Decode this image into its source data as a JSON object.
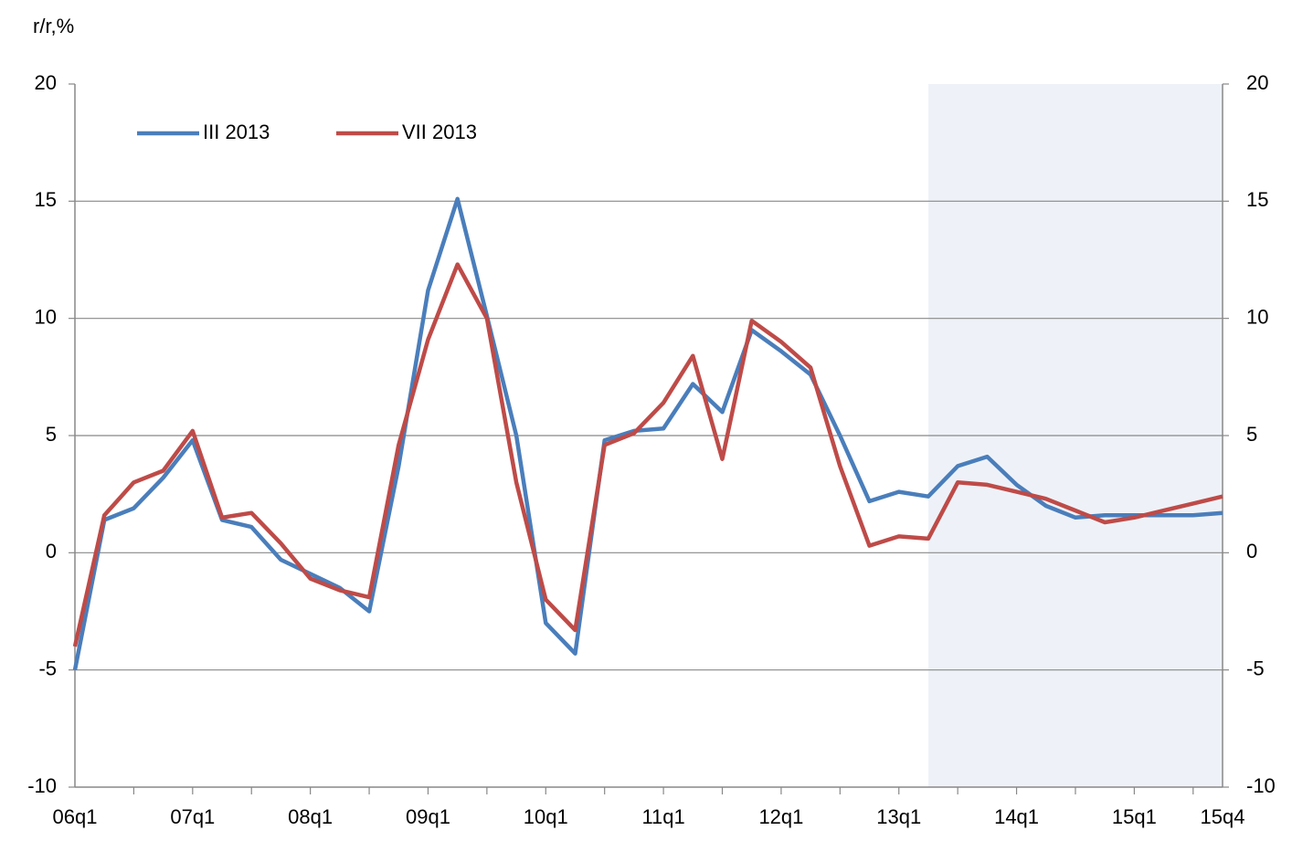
{
  "chart_data": {
    "type": "line",
    "y_axis_label": "r/r,%",
    "categories": [
      "06q1",
      null,
      null,
      null,
      "07q1",
      null,
      null,
      null,
      "08q1",
      null,
      null,
      null,
      "09q1",
      null,
      null,
      null,
      "10q1",
      null,
      null,
      null,
      "11q1",
      null,
      null,
      null,
      "12q1",
      null,
      null,
      null,
      "13q1",
      null,
      null,
      null,
      "14q1",
      null,
      null,
      null,
      "15q1",
      null,
      null,
      "15q4"
    ],
    "series": [
      {
        "name": "III 2013",
        "color": "#4a7ebb",
        "values": [
          -5.0,
          1.4,
          1.9,
          3.2,
          4.8,
          1.4,
          1.1,
          -0.3,
          -0.9,
          -1.5,
          -2.5,
          3.7,
          11.2,
          15.1,
          10.1,
          5.0,
          -3.0,
          -4.3,
          4.8,
          5.2,
          5.3,
          7.2,
          6.0,
          9.5,
          8.6,
          7.6,
          5.0,
          2.2,
          2.6,
          2.4,
          3.7,
          4.1,
          2.9,
          2.0,
          1.5,
          1.6,
          1.6,
          1.6,
          1.6,
          1.7
        ]
      },
      {
        "name": "VII 2013",
        "color": "#be4b48",
        "values": [
          -4.0,
          1.6,
          3.0,
          3.5,
          5.2,
          1.5,
          1.7,
          0.4,
          -1.1,
          -1.6,
          -1.9,
          4.6,
          9.1,
          12.3,
          10.0,
          3.0,
          -2.0,
          -3.3,
          4.6,
          5.1,
          6.4,
          8.4,
          4.0,
          9.9,
          9.0,
          7.9,
          3.7,
          0.3,
          0.7,
          0.6,
          3.0,
          2.9,
          2.6,
          2.3,
          1.8,
          1.3,
          1.5,
          1.8,
          2.1,
          2.4
        ]
      }
    ],
    "ylim": [
      -10,
      20
    ],
    "yticks": [
      -10,
      -5,
      0,
      5,
      10,
      15,
      20
    ],
    "y2lim": [
      -10,
      20
    ],
    "y2ticks": [
      -10,
      -5,
      0,
      5,
      10,
      15,
      20
    ],
    "grid": true
  }
}
